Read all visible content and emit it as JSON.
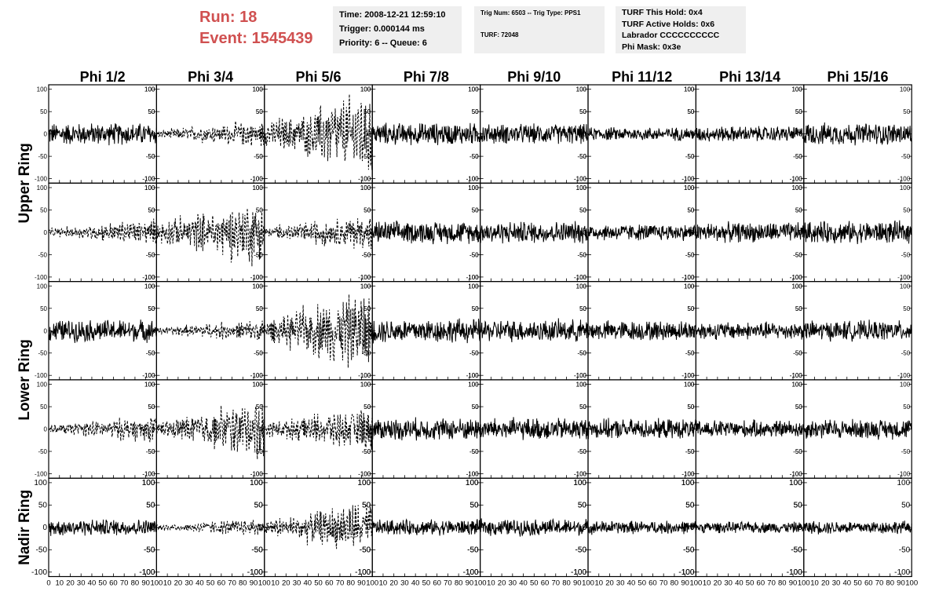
{
  "header": {
    "run": "Run:    18",
    "event": "Event: 1545439",
    "time": "Time: 2008-12-21 12:59:10",
    "trigger": "Trigger: 0.000144 ms",
    "priority": "Priority: 6 -- Queue: 6",
    "trig_num": "Trig Num: 6503 -- Trig Type: PPS1",
    "turf": "TURF: 72048",
    "turf_hold": "TURF This Hold: 0x4",
    "turf_active": "TURF Active Holds: 0x6",
    "labrador": "Labrador CCCCCCCCCC",
    "phi_mask": "Phi Mask: 0x3e"
  },
  "colors": {
    "run_text": "#d05050",
    "info_bg": "#efefef",
    "trace": "#000000"
  },
  "chart_data": {
    "type": "line",
    "columns": [
      "Phi 1/2",
      "Phi 3/4",
      "Phi 5/6",
      "Phi 7/8",
      "Phi 9/10",
      "Phi 11/12",
      "Phi 13/14",
      "Phi 15/16"
    ],
    "rows": [
      "Upper Ring",
      "Lower Ring",
      "Nadir Ring"
    ],
    "panel_rows": 5,
    "ring_of_panel_row": [
      0,
      0,
      1,
      1,
      2
    ],
    "xlim": [
      0,
      100
    ],
    "ylim": [
      -110,
      110
    ],
    "y_ticks": [
      100,
      50,
      0,
      -50,
      -100
    ],
    "x_ticks": [
      0,
      10,
      20,
      30,
      40,
      50,
      60,
      70,
      80,
      90,
      100
    ],
    "samples": 260,
    "amplitudes": [
      [
        20,
        18,
        55,
        20,
        18,
        12,
        14,
        20
      ],
      [
        18,
        45,
        25,
        20,
        20,
        15,
        18,
        20
      ],
      [
        20,
        15,
        55,
        22,
        20,
        18,
        16,
        18
      ],
      [
        18,
        40,
        30,
        20,
        20,
        18,
        16,
        18
      ],
      [
        15,
        12,
        35,
        14,
        15,
        12,
        10,
        12
      ]
    ],
    "dashed": [
      [
        false,
        true,
        true,
        false,
        false,
        false,
        false,
        false
      ],
      [
        true,
        true,
        true,
        false,
        false,
        false,
        false,
        false
      ],
      [
        false,
        true,
        true,
        false,
        false,
        false,
        false,
        false
      ],
      [
        true,
        true,
        true,
        false,
        false,
        false,
        false,
        false
      ],
      [
        false,
        true,
        true,
        false,
        false,
        false,
        false,
        false
      ]
    ]
  }
}
